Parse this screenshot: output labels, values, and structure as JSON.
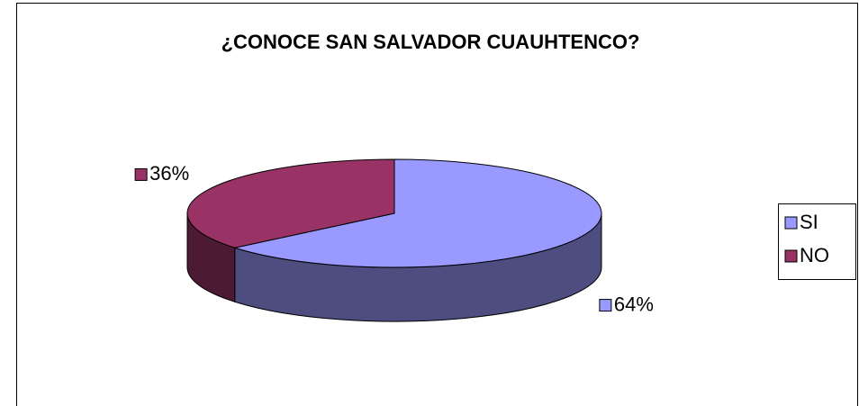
{
  "chart_data": {
    "type": "pie3d",
    "title": "¿CONOCE SAN SALVADOR CUAUHTENCO?",
    "categories": [
      "SI",
      "NO"
    ],
    "values": [
      64,
      36
    ],
    "value_labels": [
      "64%",
      "36%"
    ],
    "colors": [
      "#9999ff",
      "#993366"
    ],
    "side_colors": [
      "#4d4d80",
      "#4d1a33"
    ],
    "legend": "right"
  }
}
